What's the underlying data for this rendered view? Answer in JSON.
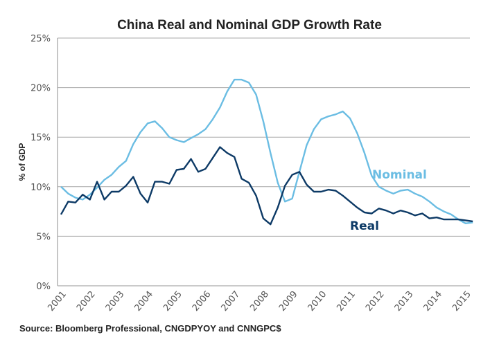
{
  "chart_data": {
    "type": "line",
    "title": "China Real and Nominal GDP Growth Rate",
    "xlabel": "",
    "ylabel": "% of GDP",
    "source": "Source: Bloomberg Professional, CNGDPYOY and CNNGPC$",
    "ylim": [
      0,
      25
    ],
    "yticks": [
      0,
      5,
      10,
      15,
      20,
      25
    ],
    "ytick_labels": [
      "0%",
      "5%",
      "10%",
      "15%",
      "20%",
      "25%"
    ],
    "xticks": [
      2001,
      2002,
      2003,
      2004,
      2005,
      2006,
      2007,
      2008,
      2009,
      2010,
      2011,
      2012,
      2013,
      2014,
      2015
    ],
    "xtick_labels": [
      "2001",
      "2002",
      "2003",
      "2004",
      "2005",
      "2006",
      "2007",
      "2008",
      "2009",
      "2010",
      "2011",
      "2012",
      "2013",
      "2014",
      "2015"
    ],
    "xlim": [
      2001,
      2015.5
    ],
    "x_frequency": "quarterly",
    "x_start": 2001.0,
    "x_step": 0.25,
    "grid": true,
    "series": [
      {
        "name": "Nominal",
        "color": "#6bbde3",
        "label_position": "right",
        "values": [
          10.0,
          9.3,
          8.9,
          8.7,
          9.2,
          9.9,
          10.7,
          11.2,
          12.0,
          12.6,
          14.3,
          15.5,
          16.4,
          16.6,
          15.9,
          15.0,
          14.7,
          14.5,
          14.9,
          15.3,
          15.8,
          16.8,
          18.0,
          19.6,
          20.8,
          20.8,
          20.5,
          19.3,
          16.6,
          13.4,
          10.4,
          8.5,
          8.8,
          11.5,
          14.2,
          15.8,
          16.8,
          17.1,
          17.3,
          17.6,
          16.9,
          15.4,
          13.4,
          11.1,
          10.0,
          9.6,
          9.3,
          9.6,
          9.7,
          9.3,
          9.0,
          8.5,
          7.9,
          7.5,
          7.2,
          6.7,
          6.3,
          6.4
        ]
      },
      {
        "name": "Real",
        "color": "#0d3a66",
        "label_position": "right",
        "values": [
          7.2,
          8.5,
          8.4,
          9.2,
          8.7,
          10.5,
          8.7,
          9.5,
          9.5,
          10.1,
          11.0,
          9.3,
          8.4,
          10.5,
          10.5,
          10.3,
          11.7,
          11.8,
          12.8,
          11.5,
          11.8,
          12.9,
          14.0,
          13.4,
          13.0,
          10.8,
          10.4,
          9.1,
          6.8,
          6.2,
          7.9,
          10.1,
          11.2,
          11.5,
          10.2,
          9.5,
          9.5,
          9.7,
          9.6,
          9.1,
          8.5,
          7.9,
          7.4,
          7.3,
          7.8,
          7.6,
          7.3,
          7.6,
          7.4,
          7.1,
          7.3,
          6.8,
          6.9,
          6.7,
          6.7,
          6.7,
          6.6,
          6.5
        ]
      }
    ]
  }
}
